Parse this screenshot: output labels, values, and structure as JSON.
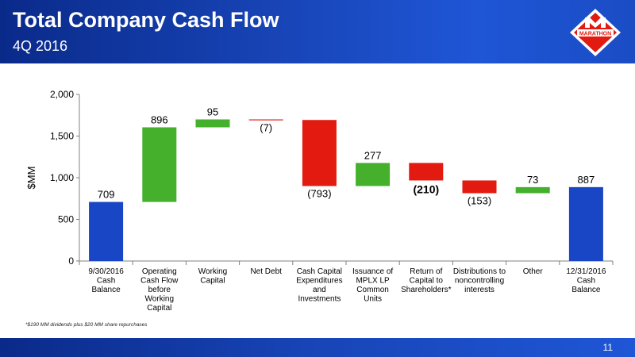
{
  "header": {
    "title": "Total Company Cash Flow",
    "subtitle": "4Q 2016",
    "logo_text": "MARATHON"
  },
  "colors": {
    "header_blue": "#1a3fb0",
    "increase": "#44b02c",
    "decrease": "#e21a10",
    "total": "#1846c4"
  },
  "chart_data": {
    "type": "bar",
    "subtype": "waterfall",
    "title": "",
    "xlabel": "",
    "ylabel": "$MM",
    "ylim": [
      0,
      2000
    ],
    "yticks": [
      "0",
      "500",
      "1,000",
      "1,500",
      "2,000"
    ],
    "grid": false,
    "categories": [
      "9/30/2016 Cash Balance",
      "Operating Cash Flow before Working Capital",
      "Working Capital",
      "Net Debt",
      "Cash Capital Expenditures and Investments",
      "Issuance of MPLX LP Common Units",
      "Return of Capital to Shareholders*",
      "Distributions to noncontrolling interests",
      "Other",
      "12/31/2016 Cash Balance"
    ],
    "values": [
      709,
      896,
      95,
      -7,
      -793,
      277,
      -210,
      -153,
      73,
      887
    ],
    "kinds": [
      "total",
      "increase",
      "increase",
      "decrease",
      "decrease",
      "increase",
      "decrease",
      "decrease",
      "increase",
      "total"
    ],
    "data_labels": [
      "709",
      "896",
      "95",
      "(7)",
      "(793)",
      "277",
      "(210)",
      "(153)",
      "73",
      "887"
    ]
  },
  "footnote": "*$190 MM dividends plus $20 MM share repurchases",
  "page_number": "11"
}
